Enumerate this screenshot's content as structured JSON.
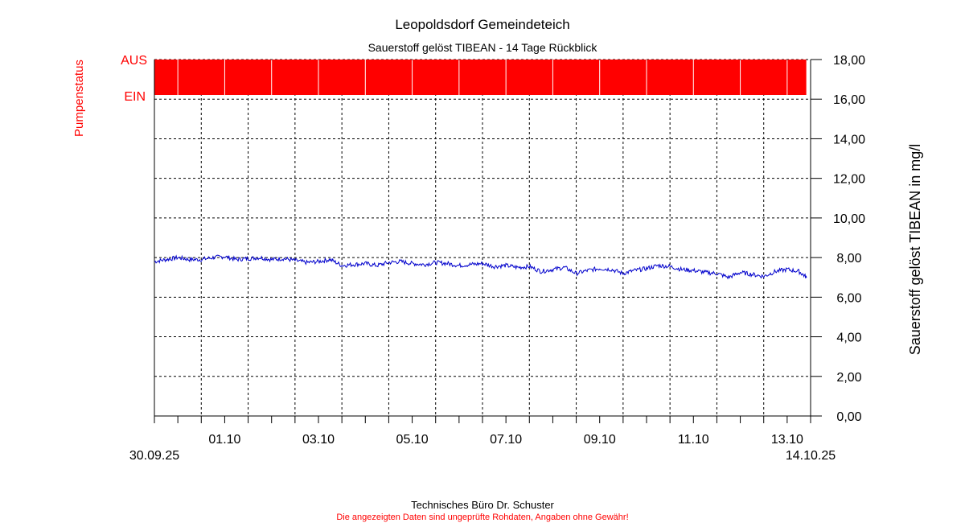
{
  "title": "Leopoldsdorf Gemeindeteich",
  "subtitle": "Sauerstoff gelöst  TIBEAN - 14 Tage Rückblick",
  "footer": {
    "line1": "Technisches Büro Dr. Schuster",
    "line2": "Die angezeigten Daten sind ungeprüfte Rohdaten, Angaben ohne Gewähr!"
  },
  "colors": {
    "pump": "#ff0000",
    "series": "#0000cc",
    "footer_note": "#ff0000",
    "pump_label": "#ff0000"
  },
  "pump": {
    "axis_label": "Pumpenstatus",
    "on_label": "EIN",
    "off_label": "AUS"
  },
  "chart_data": {
    "type": "line",
    "title": "Leopoldsdorf Gemeindeteich",
    "subtitle": "Sauerstoff gelöst  TIBEAN - 14 Tage Rückblick",
    "ylabel": "Sauerstoff gelöst   TIBEAN in mg/l",
    "ylim": [
      0,
      18
    ],
    "y_ticks": [
      "0,00",
      "2,00",
      "4,00",
      "6,00",
      "8,00",
      "10,00",
      "12,00",
      "14,00",
      "16,00",
      "18,00"
    ],
    "xlim": [
      "30.09.25",
      "14.10.25"
    ],
    "x_start_label": "30.09.25",
    "x_end_label": "14.10.25",
    "x_ticks": [
      "01.10",
      "03.10",
      "05.10",
      "07.10",
      "09.10",
      "11.10",
      "13.10"
    ],
    "grid": true,
    "pump_status": {
      "levels": [
        "EIN",
        "AUS"
      ],
      "state": "AUS",
      "segments": [
        {
          "from": "30.09.25 00:00",
          "to": "30.09.25 12:00"
        },
        {
          "from": "30.09.25 12:00",
          "to": "01.10.25 12:00"
        },
        {
          "from": "01.10.25 12:00",
          "to": "02.10.25 12:00"
        },
        {
          "from": "02.10.25 12:00",
          "to": "03.10.25 12:00"
        },
        {
          "from": "03.10.25 12:00",
          "to": "04.10.25 12:00"
        },
        {
          "from": "04.10.25 12:00",
          "to": "05.10.25 12:00"
        },
        {
          "from": "05.10.25 12:00",
          "to": "06.10.25 12:00"
        },
        {
          "from": "06.10.25 12:00",
          "to": "07.10.25 12:00"
        },
        {
          "from": "07.10.25 12:00",
          "to": "08.10.25 12:00"
        },
        {
          "from": "08.10.25 12:00",
          "to": "09.10.25 12:00"
        },
        {
          "from": "09.10.25 12:00",
          "to": "10.10.25 12:00"
        },
        {
          "from": "10.10.25 12:00",
          "to": "11.10.25 12:00"
        },
        {
          "from": "11.10.25 12:00",
          "to": "12.10.25 12:00"
        },
        {
          "from": "12.10.25 12:00",
          "to": "13.10.25 12:00"
        },
        {
          "from": "13.10.25 12:00",
          "to": "13.10.25 22:00"
        }
      ]
    },
    "series": [
      {
        "x": [
          "30.09.25 00:00",
          "30.09.25 06:00",
          "30.09.25 12:00",
          "30.09.25 18:00",
          "01.10.25 00:00",
          "01.10.25 06:00",
          "01.10.25 12:00",
          "01.10.25 18:00",
          "02.10.25 00:00",
          "02.10.25 06:00",
          "02.10.25 12:00",
          "02.10.25 18:00",
          "03.10.25 00:00",
          "03.10.25 06:00",
          "03.10.25 12:00",
          "03.10.25 18:00",
          "04.10.25 00:00",
          "04.10.25 06:00",
          "04.10.25 12:00",
          "04.10.25 18:00",
          "05.10.25 00:00",
          "05.10.25 06:00",
          "05.10.25 12:00",
          "05.10.25 18:00",
          "06.10.25 00:00",
          "06.10.25 06:00",
          "06.10.25 12:00",
          "06.10.25 18:00",
          "07.10.25 00:00",
          "07.10.25 06:00",
          "07.10.25 12:00",
          "07.10.25 18:00",
          "08.10.25 00:00",
          "08.10.25 06:00",
          "08.10.25 12:00",
          "08.10.25 18:00",
          "09.10.25 00:00",
          "09.10.25 06:00",
          "09.10.25 12:00",
          "09.10.25 18:00",
          "10.10.25 00:00",
          "10.10.25 06:00",
          "10.10.25 12:00",
          "10.10.25 18:00",
          "11.10.25 00:00",
          "11.10.25 06:00",
          "11.10.25 12:00",
          "11.10.25 18:00",
          "12.10.25 00:00",
          "12.10.25 06:00",
          "12.10.25 12:00",
          "12.10.25 18:00",
          "13.10.25 00:00",
          "13.10.25 06:00",
          "13.10.25 12:00",
          "13.10.25 18:00",
          "13.10.25 22:00"
        ],
        "values": [
          7.8,
          7.9,
          8.0,
          7.9,
          7.9,
          8.0,
          8.05,
          7.9,
          7.95,
          8.0,
          7.9,
          7.95,
          7.85,
          7.75,
          7.8,
          7.9,
          7.6,
          7.65,
          7.7,
          7.6,
          7.75,
          7.8,
          7.7,
          7.65,
          7.75,
          7.7,
          7.6,
          7.65,
          7.7,
          7.55,
          7.6,
          7.5,
          7.55,
          7.3,
          7.4,
          7.5,
          7.2,
          7.35,
          7.45,
          7.4,
          7.2,
          7.35,
          7.45,
          7.6,
          7.55,
          7.4,
          7.35,
          7.25,
          7.2,
          7.0,
          7.25,
          7.15,
          7.05,
          7.3,
          7.4,
          7.3,
          7.0
        ]
      }
    ]
  }
}
